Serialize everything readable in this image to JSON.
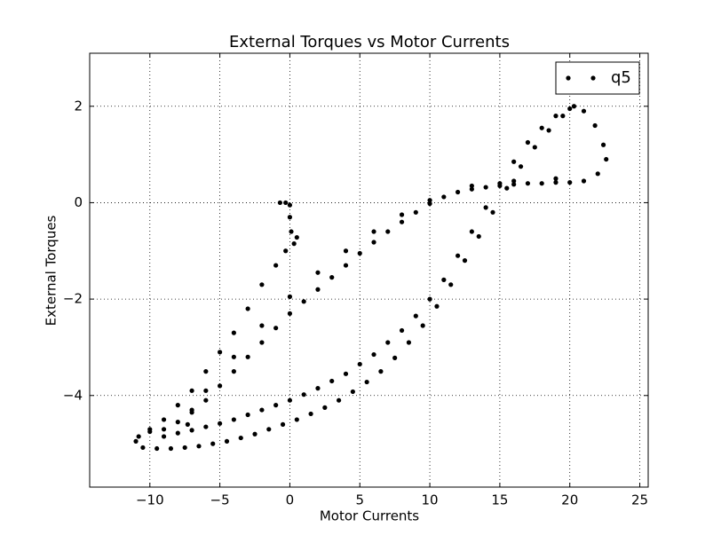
{
  "chart_data": {
    "type": "scatter",
    "title": "External Torques vs Motor Currents",
    "x_label": "Motor Currents",
    "y_label": "External Torques",
    "xlim": [
      -14.3,
      25.6
    ],
    "ylim": [
      -5.9,
      3.1
    ],
    "xticks": [
      {
        "value": -10,
        "label": "−10"
      },
      {
        "value": -5,
        "label": "−5"
      },
      0,
      5,
      10,
      15,
      20,
      25
    ],
    "yticks": [
      {
        "value": -4,
        "label": "−4"
      },
      {
        "value": -2,
        "label": "−2"
      },
      0,
      2
    ],
    "grid": true,
    "legend": "upper right",
    "series": [
      {
        "name": "q5",
        "color": "#000000",
        "x": [
          -0.7,
          -0.3,
          0,
          0,
          0.1,
          0.5,
          0.3,
          -0.3,
          -1,
          -2,
          -3,
          -4,
          -5,
          -6,
          -7,
          -8,
          -9,
          -10,
          -11,
          -10.5,
          -9.5,
          -8.5,
          -7.5,
          -6.5,
          -5.5,
          -4.5,
          -3.5,
          -2.5,
          -1.5,
          -0.5,
          0.5,
          1.5,
          2.5,
          3.5,
          4.5,
          5.5,
          6.5,
          7.5,
          8.5,
          9.5,
          10.5,
          11.5,
          12.5,
          13.5,
          14.5,
          15.5,
          16.5,
          17.5,
          18.5,
          19.5,
          20.3,
          21,
          21.8,
          22.4,
          22.6,
          22,
          21,
          20,
          19,
          18,
          17,
          16,
          15,
          14,
          13,
          12,
          11,
          10,
          9,
          8,
          7,
          6,
          5,
          4,
          3,
          2,
          1,
          0,
          -1,
          -2,
          -3,
          -4,
          -5,
          -6,
          -7,
          -8,
          -9,
          -10,
          -10.8,
          -9,
          -8,
          -7,
          -6,
          -5,
          -4,
          -3,
          -2,
          -1,
          0,
          1,
          2,
          3,
          4,
          5,
          6,
          7,
          8,
          9,
          10,
          11,
          12,
          13,
          14,
          15,
          16,
          17,
          18,
          19,
          20,
          19,
          16,
          13,
          10,
          8,
          6,
          4,
          2,
          0,
          -2,
          -4,
          -6,
          -7,
          -7.3
        ],
        "y": [
          0,
          0,
          -0.05,
          -0.3,
          -0.6,
          -0.72,
          -0.85,
          -1.0,
          -1.3,
          -1.7,
          -2.2,
          -2.7,
          -3.1,
          -3.5,
          -3.9,
          -4.2,
          -4.5,
          -4.7,
          -4.95,
          -5.08,
          -5.1,
          -5.1,
          -5.08,
          -5.05,
          -5.0,
          -4.95,
          -4.88,
          -4.8,
          -4.7,
          -4.6,
          -4.5,
          -4.38,
          -4.25,
          -4.1,
          -3.92,
          -3.72,
          -3.5,
          -3.22,
          -2.9,
          -2.55,
          -2.15,
          -1.7,
          -1.2,
          -0.7,
          -0.2,
          0.3,
          0.75,
          1.15,
          1.5,
          1.8,
          2.0,
          1.9,
          1.6,
          1.2,
          0.9,
          0.6,
          0.45,
          0.42,
          0.42,
          0.4,
          0.4,
          0.38,
          0.35,
          0.32,
          0.28,
          0.22,
          0.12,
          -0.02,
          -0.2,
          -0.4,
          -0.6,
          -0.82,
          -1.05,
          -1.3,
          -1.55,
          -1.8,
          -2.05,
          -2.3,
          -2.6,
          -2.9,
          -3.2,
          -3.5,
          -3.8,
          -4.1,
          -4.35,
          -4.55,
          -4.7,
          -4.75,
          -4.85,
          -4.85,
          -4.78,
          -4.72,
          -4.65,
          -4.58,
          -4.5,
          -4.4,
          -4.3,
          -4.2,
          -4.1,
          -3.98,
          -3.85,
          -3.7,
          -3.55,
          -3.35,
          -3.15,
          -2.9,
          -2.65,
          -2.35,
          -2.0,
          -1.6,
          -1.1,
          -0.6,
          -0.1,
          0.4,
          0.85,
          1.25,
          1.55,
          1.8,
          1.95,
          0.5,
          0.45,
          0.35,
          0.05,
          -0.25,
          -0.6,
          -1.0,
          -1.45,
          -1.95,
          -2.55,
          -3.2,
          -3.9,
          -4.3,
          -4.6
        ]
      }
    ]
  }
}
